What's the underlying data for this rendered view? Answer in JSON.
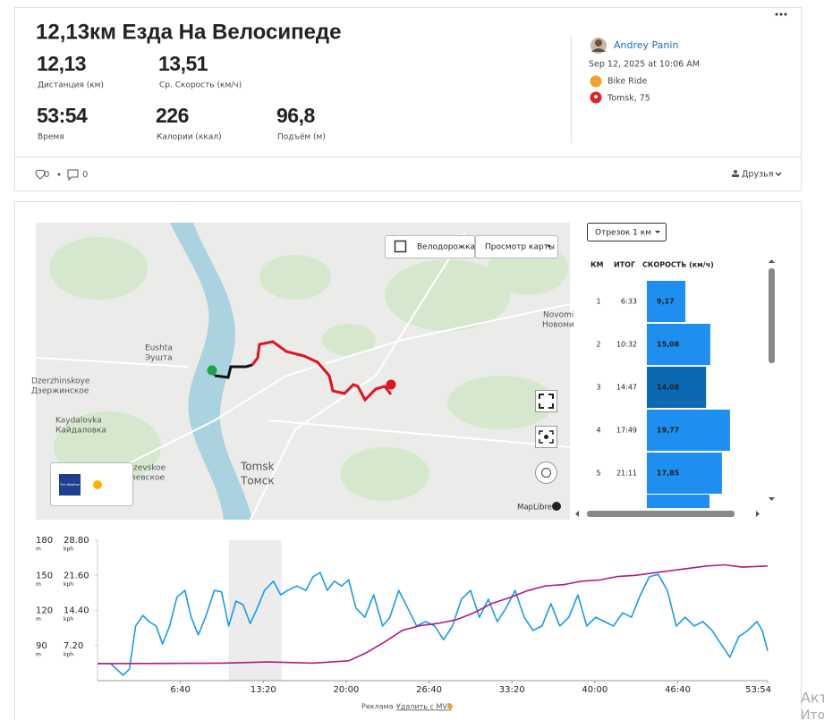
{
  "header": {
    "title": "12,13км Езда На Велосипеде"
  },
  "stats": [
    {
      "value": "12,13",
      "label": "Дистанция (км)"
    },
    {
      "value": "13,51",
      "label": "Ср. Скорость (км/ч)"
    },
    {
      "value": "53:54",
      "label": "Время"
    },
    {
      "value": "226",
      "label": "Калории (ккал)"
    },
    {
      "value": "96,8",
      "label": "Подъём (м)"
    }
  ],
  "athlete": {
    "name": "Andrey Panin",
    "date": "Sep 12, 2025 at 10:06 AM",
    "activity": "Bike Ride",
    "location": "Tomsk, 75"
  },
  "social": {
    "likes": "0",
    "comments": "0",
    "visibility": "Друзья"
  },
  "map": {
    "controls": [
      "Велодорожка",
      "Просмотр карты"
    ],
    "labels": [
      "Eushta",
      "Эушта",
      "Dzerzhinskoye",
      "Дзержинское",
      "Kaydalovka",
      "Кайдаловка",
      "Tomsk",
      "Томск",
      "zevskoe",
      "зевское",
      "Novomi",
      "Новоми"
    ],
    "attribution": "MapLibre",
    "weather": "The Weather Channel"
  },
  "splits": {
    "selector": "Отрезок 1 км",
    "headers": [
      "КМ",
      "ИТОГ",
      "СКОРОСТЬ (км/ч)"
    ],
    "color": "#1e8ff0",
    "selected_color": "#0b68b5",
    "selected": 2,
    "km": [
      "1",
      "2",
      "3",
      "4",
      "5"
    ],
    "total": [
      "6:33",
      "10:32",
      "14:47",
      "17:49",
      "21:11"
    ],
    "speed": [
      9.17,
      15.08,
      14.08,
      19.77,
      17.85
    ],
    "value_labels": [
      "9,17",
      "15,08",
      "14,08",
      "19,77",
      "17,85"
    ]
  },
  "chart_data": {
    "type": "line",
    "x": [
      0,
      63,
      124,
      154,
      184,
      219,
      249,
      283,
      314,
      348,
      383,
      422,
      452,
      486,
      521,
      564,
      599,
      633,
      668,
      702,
      737,
      771,
      806,
      849,
      884,
      918,
      962,
      1005,
      1040,
      1074,
      1109,
      1143,
      1178,
      1212,
      1247,
      1290,
      1333,
      1376,
      1411,
      1454,
      1497,
      1540,
      1584,
      1627,
      1670,
      1713,
      1756,
      1800,
      1843,
      1886,
      1929,
      1972,
      2015,
      2059,
      2102,
      2145,
      2188,
      2231,
      2275,
      2318,
      2361,
      2404,
      2447,
      2490,
      2534,
      2577,
      2620,
      2663,
      2706,
      2750,
      2793,
      2836,
      2879,
      2922,
      2966,
      3009,
      3052,
      3095,
      3138,
      3182,
      3208,
      3234
    ],
    "xlim": [
      0,
      3234
    ],
    "xticks": [
      {
        "value": 400,
        "label": "6:40"
      },
      {
        "value": 800,
        "label": "13:20"
      },
      {
        "value": 1200,
        "label": "20:00"
      },
      {
        "value": 1600,
        "label": "26:40"
      },
      {
        "value": 2000,
        "label": "33:20"
      },
      {
        "value": 2400,
        "label": "40:00"
      },
      {
        "value": 2800,
        "label": "46:40"
      },
      {
        "value": 3234,
        "label": "53:54"
      }
    ],
    "ylim": [
      0,
      28.8
    ],
    "yticks": [
      {
        "value": 7.2,
        "label": "7.20"
      },
      {
        "value": 14.4,
        "label": "14.40"
      },
      {
        "value": 21.6,
        "label": "21.60"
      },
      {
        "value": 28.8,
        "label": "28.80"
      }
    ],
    "y_unit": "kph",
    "y2lim": [
      60,
      180
    ],
    "y2ticks": [
      90,
      120,
      150,
      180
    ],
    "y2_unit": "m",
    "highlight": [
      633,
      888
    ],
    "series": [
      {
        "color": "#1a9be6",
        "values": [
          3.5,
          3.5,
          1.1,
          2.4,
          11.2,
          13.4,
          12.1,
          11.2,
          7.5,
          11.2,
          17.1,
          18.5,
          13.0,
          9.4,
          13.0,
          18.5,
          18.2,
          11.2,
          16.3,
          15.6,
          11.7,
          14.9,
          18.5,
          20.4,
          17.6,
          18.5,
          19.4,
          18.5,
          21.3,
          22.2,
          18.5,
          20.4,
          19.4,
          20.7,
          14.9,
          13.0,
          17.6,
          11.2,
          13.0,
          18.5,
          14.9,
          11.2,
          12.1,
          11.2,
          8.4,
          11.2,
          16.7,
          18.5,
          13.0,
          16.7,
          12.1,
          14.9,
          18.5,
          13.0,
          10.3,
          11.2,
          15.8,
          11.2,
          13.0,
          17.6,
          11.2,
          13.0,
          12.1,
          11.2,
          13.9,
          13.0,
          17.6,
          21.3,
          21.8,
          18.5,
          11.2,
          13.0,
          11.2,
          12.1,
          10.3,
          7.5,
          4.8,
          9.0,
          10.3,
          12.1,
          10.3,
          6.1
        ]
      },
      {
        "axis": "y2",
        "color": "#b3197d",
        "x": [
          0,
          608,
          824,
          1040,
          1212,
          1299,
          1385,
          1472,
          1558,
          1644,
          1731,
          1817,
          1904,
          1990,
          2077,
          2163,
          2249,
          2336,
          2422,
          2508,
          2595,
          2681,
          2767,
          2854,
          2940,
          3026,
          3112,
          3234
        ],
        "values": [
          74.5,
          75,
          76,
          75,
          77,
          84,
          93,
          103,
          107,
          109,
          112,
          118,
          126,
          131,
          137,
          141,
          142,
          145,
          146,
          149,
          150,
          152,
          154,
          156,
          158,
          159,
          157,
          158
        ]
      }
    ]
  },
  "footer": {
    "ad": "Реклама ·",
    "remove": "Удалить с MVP",
    "overlay": [
      "Акт",
      "Ито"
    ]
  }
}
